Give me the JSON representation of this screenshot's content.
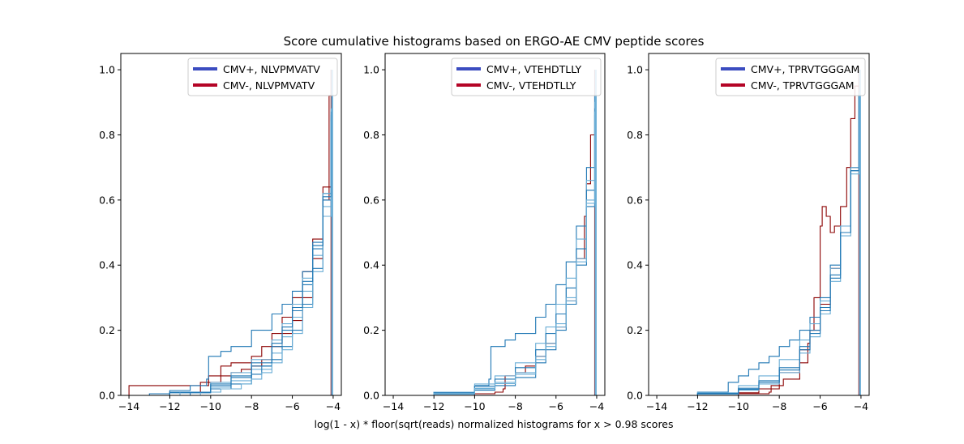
{
  "chart_data": {
    "type": "line",
    "title": "Score cumulative histograms based on ERGO-AE CMV peptide scores",
    "xlabel": "log(1 - x) * floor(sqrt(reads) normalized histograms for x > 0.98 scores",
    "xlim": [
      -14.4,
      -3.6
    ],
    "ylim": [
      0,
      1.05
    ],
    "xticks": [
      -14,
      -12,
      -10,
      -8,
      -6,
      -4
    ],
    "yticks": [
      0.0,
      0.2,
      0.4,
      0.6,
      0.8,
      1.0
    ],
    "xtick_labels": [
      "−14",
      "−12",
      "−10",
      "−8",
      "−6",
      "−4"
    ],
    "ytick_labels": [
      "0.0",
      "0.2",
      "0.4",
      "0.6",
      "0.8",
      "1.0"
    ],
    "legend_placement": "top-right",
    "colors": {
      "positive": "#3b4cc0",
      "negative": "#b40426",
      "positive_curves": "#1f77b4",
      "positive_curves_light": "#6baed6",
      "negative_curves": "#8b0000"
    },
    "panels": [
      {
        "peptide": "NLVPMVATV",
        "legend": [
          "CMV+, NLVPMVATV",
          "CMV-, NLVPMVATV"
        ],
        "positive_curves": [
          {
            "x": [
              -14.2,
              -13.0,
              -12.0,
              -11.0,
              -10.2,
              -10.1,
              -9.5,
              -9.0,
              -8.0,
              -7.0,
              -6.5,
              -6.0,
              -5.5,
              -5.0,
              -4.5,
              -4.1,
              -4.05
            ],
            "y": [
              0.0,
              0.005,
              0.015,
              0.03,
              0.05,
              0.12,
              0.135,
              0.15,
              0.2,
              0.25,
              0.28,
              0.32,
              0.38,
              0.47,
              0.62,
              0.85,
              1.0
            ]
          },
          {
            "x": [
              -14.0,
              -12.0,
              -10.0,
              -9.0,
              -8.0,
              -7.0,
              -6.5,
              -6.0,
              -5.5,
              -5.0,
              -4.5,
              -4.1,
              -4.05
            ],
            "y": [
              0.0,
              0.01,
              0.04,
              0.07,
              0.11,
              0.17,
              0.22,
              0.28,
              0.36,
              0.46,
              0.62,
              0.88,
              1.0
            ]
          },
          {
            "x": [
              -13.8,
              -12.0,
              -10.0,
              -9.0,
              -8.0,
              -7.0,
              -6.5,
              -6.0,
              -5.5,
              -5.0,
              -4.5,
              -4.1,
              -4.05
            ],
            "y": [
              0.0,
              0.008,
              0.03,
              0.055,
              0.09,
              0.15,
              0.2,
              0.26,
              0.34,
              0.45,
              0.6,
              0.86,
              1.0
            ]
          },
          {
            "x": [
              -13.5,
              -11.5,
              -10.0,
              -9.0,
              -8.0,
              -7.0,
              -6.5,
              -6.0,
              -5.5,
              -5.0,
              -4.5,
              -4.1,
              -4.05
            ],
            "y": [
              0.0,
              0.01,
              0.025,
              0.045,
              0.08,
              0.13,
              0.18,
              0.24,
              0.32,
              0.43,
              0.58,
              0.84,
              1.0
            ]
          },
          {
            "x": [
              -13.0,
              -11.0,
              -10.0,
              -9.0,
              -8.0,
              -7.5,
              -7.0,
              -6.5,
              -6.0,
              -5.5,
              -5.0,
              -4.5,
              -4.1,
              -4.05
            ],
            "y": [
              0.0,
              0.01,
              0.02,
              0.035,
              0.065,
              0.09,
              0.11,
              0.15,
              0.2,
              0.28,
              0.39,
              0.55,
              0.82,
              1.0
            ]
          },
          {
            "x": [
              -12.5,
              -10.5,
              -9.5,
              -8.5,
              -8.0,
              -7.5,
              -7.0,
              -6.5,
              -6.0,
              -5.5,
              -5.0,
              -4.5,
              -4.1,
              -4.05
            ],
            "y": [
              0.0,
              0.01,
              0.02,
              0.035,
              0.05,
              0.07,
              0.1,
              0.14,
              0.19,
              0.27,
              0.38,
              0.55,
              0.82,
              1.0
            ]
          },
          {
            "x": [
              -14.0,
              -12.0,
              -10.0,
              -9.0,
              -8.0,
              -7.0,
              -6.5,
              -6.0,
              -5.5,
              -5.0,
              -4.5,
              -4.1,
              -4.05
            ],
            "y": [
              0.0,
              0.01,
              0.035,
              0.06,
              0.1,
              0.16,
              0.21,
              0.27,
              0.35,
              0.46,
              0.61,
              0.87,
              1.0
            ]
          }
        ],
        "negative_curves": [
          {
            "x": [
              -14.4,
              -14.0,
              -10.5,
              -10.1,
              -9.5,
              -9.0,
              -8.5,
              -8.0,
              -7.5,
              -7.0,
              -6.5,
              -6.0,
              -5.5,
              -5.0,
              -4.5,
              -4.2,
              -4.1
            ],
            "y": [
              0.0,
              0.03,
              0.03,
              0.06,
              0.06,
              0.07,
              0.08,
              0.09,
              0.11,
              0.15,
              0.19,
              0.23,
              0.3,
              0.42,
              0.6,
              0.92,
              1.0
            ]
          },
          {
            "x": [
              -14.0,
              -12.0,
              -10.5,
              -9.5,
              -9.0,
              -8.0,
              -7.5,
              -7.0,
              -6.5,
              -6.0,
              -5.5,
              -5.0,
              -4.5,
              -4.1
            ],
            "y": [
              0.0,
              0.01,
              0.04,
              0.09,
              0.1,
              0.12,
              0.15,
              0.19,
              0.24,
              0.3,
              0.38,
              0.48,
              0.64,
              1.0
            ]
          }
        ]
      },
      {
        "peptide": "VTEHDTLLY",
        "legend": [
          "CMV+, VTEHDTLLY",
          "CMV-, VTEHDTLLY"
        ],
        "positive_curves": [
          {
            "x": [
              -14.0,
              -12.0,
              -10.0,
              -9.3,
              -9.2,
              -8.5,
              -8.0,
              -7.0,
              -6.5,
              -6.0,
              -5.5,
              -5.0,
              -4.5,
              -4.1,
              -4.05
            ],
            "y": [
              0.0,
              0.01,
              0.03,
              0.05,
              0.15,
              0.17,
              0.19,
              0.24,
              0.28,
              0.34,
              0.41,
              0.52,
              0.7,
              0.92,
              1.0
            ]
          },
          {
            "x": [
              -14.0,
              -12.0,
              -10.0,
              -9.0,
              -8.0,
              -7.0,
              -6.5,
              -6.0,
              -5.5,
              -5.0,
              -4.5,
              -4.1,
              -4.05
            ],
            "y": [
              0.0,
              0.01,
              0.035,
              0.06,
              0.1,
              0.16,
              0.21,
              0.28,
              0.36,
              0.48,
              0.66,
              0.9,
              1.0
            ]
          },
          {
            "x": [
              -14.0,
              -12.0,
              -10.0,
              -9.0,
              -8.0,
              -7.0,
              -6.5,
              -6.0,
              -5.5,
              -5.0,
              -4.5,
              -4.1,
              -4.05
            ],
            "y": [
              0.0,
              0.008,
              0.028,
              0.05,
              0.085,
              0.14,
              0.19,
              0.25,
              0.33,
              0.45,
              0.63,
              0.88,
              1.0
            ]
          },
          {
            "x": [
              -14.0,
              -12.0,
              -10.0,
              -9.0,
              -8.0,
              -7.0,
              -6.5,
              -6.0,
              -5.5,
              -5.0,
              -4.5,
              -4.1,
              -4.05
            ],
            "y": [
              0.0,
              0.006,
              0.022,
              0.04,
              0.07,
              0.12,
              0.16,
              0.22,
              0.3,
              0.42,
              0.6,
              0.87,
              1.0
            ]
          },
          {
            "x": [
              -14.0,
              -12.0,
              -10.0,
              -9.0,
              -8.0,
              -7.0,
              -6.5,
              -6.0,
              -5.5,
              -5.0,
              -4.5,
              -4.1,
              -4.05
            ],
            "y": [
              0.0,
              0.004,
              0.016,
              0.03,
              0.055,
              0.1,
              0.14,
              0.2,
              0.28,
              0.4,
              0.58,
              0.86,
              1.0
            ]
          },
          {
            "x": [
              -14.0,
              -12.0,
              -10.0,
              -9.0,
              -8.0,
              -7.0,
              -6.5,
              -6.0,
              -5.5,
              -5.0,
              -4.5,
              -4.1,
              -4.05
            ],
            "y": [
              0.0,
              0.005,
              0.02,
              0.036,
              0.065,
              0.11,
              0.15,
              0.21,
              0.29,
              0.41,
              0.59,
              0.87,
              1.0
            ]
          }
        ],
        "negative_curves": [
          {
            "x": [
              -14.0,
              -10.0,
              -9.0,
              -8.6,
              -8.5,
              -8.0,
              -7.5,
              -7.0,
              -6.5,
              -6.0,
              -5.5,
              -5.0,
              -4.6,
              -4.5,
              -4.3,
              -4.1
            ],
            "y": [
              0.0,
              0.005,
              0.01,
              0.02,
              0.06,
              0.07,
              0.09,
              0.12,
              0.16,
              0.21,
              0.29,
              0.42,
              0.55,
              0.65,
              0.8,
              1.0
            ]
          }
        ]
      },
      {
        "peptide": "TPRVTGGGAM",
        "legend": [
          "CMV+, TPRVTGGGAM",
          "CMV-, TPRVTGGGAM"
        ],
        "positive_curves": [
          {
            "x": [
              -14.0,
              -12.0,
              -10.5,
              -10.0,
              -9.5,
              -9.0,
              -8.5,
              -8.0,
              -7.5,
              -7.0,
              -6.5,
              -6.0,
              -5.5,
              -5.0,
              -4.5,
              -4.1,
              -4.05
            ],
            "y": [
              0.0,
              0.01,
              0.04,
              0.06,
              0.08,
              0.1,
              0.12,
              0.15,
              0.17,
              0.2,
              0.24,
              0.3,
              0.4,
              0.52,
              0.7,
              0.93,
              1.0
            ]
          },
          {
            "x": [
              -14.0,
              -12.0,
              -10.0,
              -9.0,
              -8.0,
              -7.0,
              -6.5,
              -6.0,
              -5.5,
              -5.0,
              -4.5,
              -4.1,
              -4.05
            ],
            "y": [
              0.0,
              0.008,
              0.03,
              0.06,
              0.11,
              0.17,
              0.22,
              0.29,
              0.39,
              0.52,
              0.7,
              0.92,
              1.0
            ]
          },
          {
            "x": [
              -14.0,
              -12.0,
              -10.0,
              -9.0,
              -8.0,
              -7.0,
              -6.5,
              -6.0,
              -5.5,
              -5.0,
              -4.5,
              -4.1,
              -4.05
            ],
            "y": [
              0.0,
              0.006,
              0.022,
              0.045,
              0.085,
              0.15,
              0.2,
              0.27,
              0.37,
              0.5,
              0.69,
              0.92,
              1.0
            ]
          },
          {
            "x": [
              -14.0,
              -12.0,
              -10.0,
              -9.0,
              -8.0,
              -7.0,
              -6.5,
              -6.0,
              -5.5,
              -5.0,
              -4.5,
              -4.1,
              -4.05
            ],
            "y": [
              0.0,
              0.004,
              0.016,
              0.035,
              0.07,
              0.13,
              0.18,
              0.25,
              0.35,
              0.49,
              0.68,
              0.91,
              1.0
            ]
          },
          {
            "x": [
              -14.0,
              -12.0,
              -10.0,
              -9.0,
              -8.0,
              -7.0,
              -6.5,
              -6.0,
              -5.5,
              -5.0,
              -4.5,
              -4.1,
              -4.05
            ],
            "y": [
              0.0,
              0.005,
              0.019,
              0.04,
              0.078,
              0.14,
              0.19,
              0.26,
              0.36,
              0.5,
              0.69,
              0.92,
              1.0
            ]
          }
        ],
        "negative_curves": [
          {
            "x": [
              -14.0,
              -10.0,
              -8.5,
              -8.4,
              -7.8,
              -7.0,
              -6.6,
              -6.5,
              -6.3,
              -6.0,
              -5.9,
              -5.7,
              -5.5,
              -5.3,
              -5.0,
              -4.7,
              -4.5,
              -4.3,
              -4.1
            ],
            "y": [
              0.0,
              0.005,
              0.01,
              0.03,
              0.05,
              0.1,
              0.16,
              0.2,
              0.3,
              0.52,
              0.58,
              0.55,
              0.5,
              0.52,
              0.58,
              0.7,
              0.85,
              0.95,
              1.0
            ]
          },
          {
            "x": [
              -14.0,
              -10.0,
              -9.0,
              -8.0,
              -7.0,
              -6.5,
              -6.0,
              -5.5,
              -5.0,
              -4.5,
              -4.1
            ],
            "y": [
              0.0,
              0.008,
              0.02,
              0.07,
              0.14,
              0.2,
              0.28,
              0.39,
              0.52,
              0.7,
              1.0
            ]
          }
        ]
      }
    ]
  }
}
